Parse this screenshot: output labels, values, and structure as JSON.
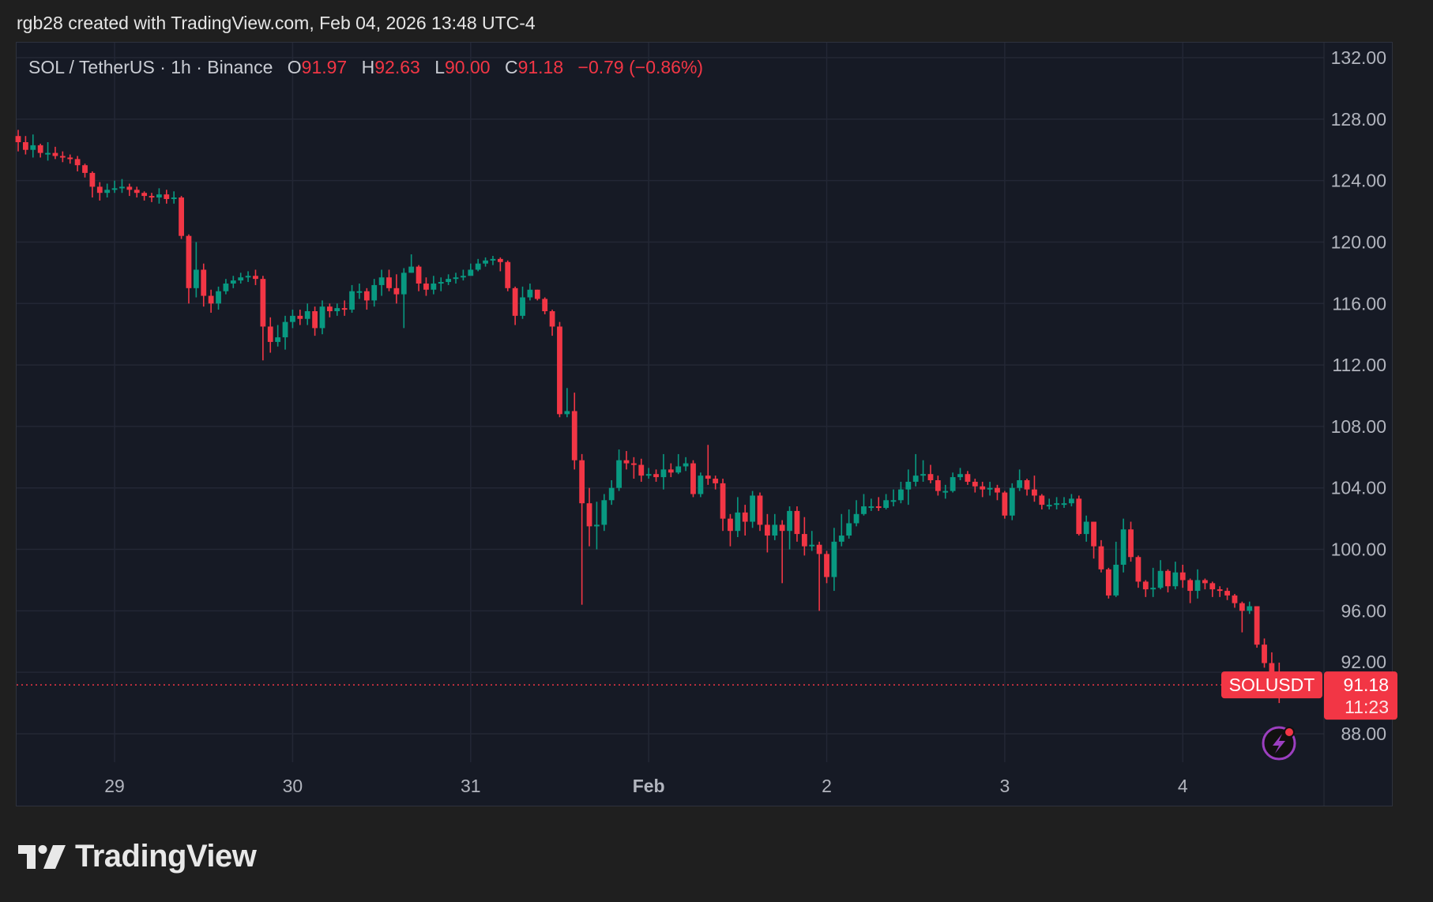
{
  "credit": "rgb28 created with TradingView.com, Feb 04, 2026 13:48 UTC-4",
  "legend": {
    "symbol": "SOL / TetherUS · 1h · Binance",
    "o_label": "O",
    "o": "91.97",
    "h_label": "H",
    "h": "92.63",
    "l_label": "L",
    "l": "90.00",
    "c_label": "C",
    "c": "91.18",
    "change": "−0.79 (−0.86%)"
  },
  "price_label": {
    "ticker": "SOLUSDT",
    "price": "91.18",
    "countdown": "11:23"
  },
  "logo_text": "TradingView",
  "colors": {
    "up": "#089981",
    "down": "#f23645",
    "background": "#161a25",
    "grid": "#232735",
    "alert_icon": "#9c3fc0"
  },
  "icons": {
    "alert": "lightning-alert-icon"
  },
  "chart_data": {
    "type": "candlestick",
    "title": "SOL / TetherUS · 1h · Binance",
    "interval": "1h",
    "ylim": [
      86,
      133
    ],
    "y_ticks": [
      "132.00",
      "128.00",
      "124.00",
      "120.00",
      "116.00",
      "112.00",
      "108.00",
      "104.00",
      "100.00",
      "96.00",
      "92.00",
      "88.00"
    ],
    "y_tick_values": [
      132,
      128,
      124,
      120,
      116,
      112,
      108,
      104,
      100,
      96,
      92,
      88
    ],
    "x_ticks": [
      {
        "label": "29",
        "index": 13
      },
      {
        "label": "30",
        "index": 37
      },
      {
        "label": "31",
        "index": 61
      },
      {
        "label": "Feb",
        "index": 85,
        "bold": true
      },
      {
        "label": "2",
        "index": 109
      },
      {
        "label": "3",
        "index": 133
      },
      {
        "label": "4",
        "index": 157
      }
    ],
    "grid": true,
    "last_price": 91.18,
    "candles": [
      [
        126.9,
        127.3,
        125.9,
        126.5
      ],
      [
        126.5,
        126.9,
        125.7,
        126.0
      ],
      [
        126.0,
        127.0,
        125.5,
        126.3
      ],
      [
        126.3,
        126.4,
        125.5,
        125.8
      ],
      [
        125.8,
        126.5,
        125.3,
        125.8
      ],
      [
        125.8,
        126.2,
        125.4,
        125.6
      ],
      [
        125.6,
        125.9,
        125.2,
        125.5
      ],
      [
        125.5,
        125.7,
        125.1,
        125.4
      ],
      [
        125.4,
        125.6,
        124.6,
        125.0
      ],
      [
        125.0,
        125.1,
        124.2,
        124.5
      ],
      [
        124.5,
        124.6,
        122.9,
        123.6
      ],
      [
        123.6,
        123.9,
        122.7,
        123.2
      ],
      [
        123.2,
        123.8,
        122.9,
        123.4
      ],
      [
        123.4,
        124.0,
        123.2,
        123.5
      ],
      [
        123.5,
        124.1,
        123.2,
        123.6
      ],
      [
        123.6,
        123.8,
        123.0,
        123.4
      ],
      [
        123.4,
        123.6,
        122.9,
        123.2
      ],
      [
        123.2,
        123.3,
        122.7,
        123.0
      ],
      [
        123.0,
        123.2,
        122.6,
        122.9
      ],
      [
        122.9,
        123.5,
        122.5,
        123.1
      ],
      [
        123.1,
        123.4,
        122.5,
        122.8
      ],
      [
        122.8,
        123.3,
        122.5,
        122.9
      ],
      [
        122.9,
        123.0,
        120.2,
        120.4
      ],
      [
        120.4,
        120.5,
        116.0,
        117.0
      ],
      [
        117.0,
        120.0,
        116.4,
        118.2
      ],
      [
        118.2,
        118.6,
        115.8,
        116.5
      ],
      [
        116.5,
        116.9,
        115.4,
        116.0
      ],
      [
        116.0,
        117.1,
        115.6,
        116.8
      ],
      [
        116.8,
        117.6,
        116.6,
        117.3
      ],
      [
        117.3,
        117.8,
        117.0,
        117.5
      ],
      [
        117.5,
        118.0,
        117.3,
        117.7
      ],
      [
        117.7,
        118.1,
        117.4,
        117.8
      ],
      [
        117.8,
        118.2,
        117.2,
        117.6
      ],
      [
        117.6,
        117.8,
        112.3,
        114.5
      ],
      [
        114.5,
        115.1,
        112.8,
        113.5
      ],
      [
        113.5,
        114.6,
        113.2,
        113.8
      ],
      [
        113.8,
        115.2,
        113.0,
        114.8
      ],
      [
        114.8,
        115.6,
        114.4,
        115.2
      ],
      [
        115.2,
        115.6,
        114.6,
        115.0
      ],
      [
        115.0,
        116.0,
        114.6,
        115.5
      ],
      [
        115.5,
        115.8,
        113.9,
        114.4
      ],
      [
        114.4,
        116.2,
        114.0,
        115.8
      ],
      [
        115.8,
        116.0,
        115.1,
        115.5
      ],
      [
        115.5,
        116.0,
        115.2,
        115.7
      ],
      [
        115.7,
        116.2,
        115.2,
        115.6
      ],
      [
        115.6,
        117.2,
        115.4,
        116.8
      ],
      [
        116.8,
        117.3,
        116.3,
        116.8
      ],
      [
        116.8,
        117.0,
        115.6,
        116.2
      ],
      [
        116.2,
        117.6,
        115.8,
        117.2
      ],
      [
        117.2,
        118.2,
        116.5,
        117.7
      ],
      [
        117.7,
        118.2,
        116.8,
        117.0
      ],
      [
        117.0,
        117.9,
        116.0,
        116.6
      ],
      [
        116.6,
        118.3,
        114.4,
        118.0
      ],
      [
        118.0,
        119.2,
        118.0,
        118.4
      ],
      [
        118.4,
        118.5,
        116.8,
        117.3
      ],
      [
        117.3,
        117.7,
        116.5,
        116.9
      ],
      [
        116.9,
        117.8,
        116.6,
        117.3
      ],
      [
        117.3,
        117.7,
        116.8,
        117.4
      ],
      [
        117.4,
        117.9,
        117.2,
        117.6
      ],
      [
        117.6,
        118.0,
        117.3,
        117.7
      ],
      [
        117.7,
        118.2,
        117.5,
        117.8
      ],
      [
        117.8,
        118.6,
        117.9,
        118.2
      ],
      [
        118.2,
        118.9,
        118.1,
        118.6
      ],
      [
        118.6,
        119.0,
        118.4,
        118.8
      ],
      [
        118.8,
        119.1,
        118.5,
        118.9
      ],
      [
        118.9,
        119.0,
        118.1,
        118.7
      ],
      [
        118.7,
        118.8,
        116.8,
        117.0
      ],
      [
        117.0,
        117.1,
        114.6,
        115.2
      ],
      [
        115.2,
        117.1,
        115.0,
        116.4
      ],
      [
        116.4,
        117.3,
        116.2,
        116.9
      ],
      [
        116.9,
        116.9,
        116.2,
        116.3
      ],
      [
        116.3,
        116.4,
        115.3,
        115.5
      ],
      [
        115.5,
        115.6,
        113.9,
        114.5
      ],
      [
        114.5,
        114.8,
        108.6,
        108.8
      ],
      [
        108.8,
        110.5,
        108.6,
        109.0
      ],
      [
        109.0,
        110.2,
        105.2,
        105.8
      ],
      [
        105.8,
        106.2,
        96.4,
        103.0
      ],
      [
        103.0,
        104.0,
        100.2,
        101.5
      ],
      [
        101.5,
        103.1,
        100.0,
        101.6
      ],
      [
        101.6,
        103.6,
        101.2,
        103.2
      ],
      [
        103.2,
        104.5,
        102.9,
        104.0
      ],
      [
        104.0,
        106.5,
        103.8,
        105.8
      ],
      [
        105.8,
        106.4,
        105.2,
        105.6
      ],
      [
        105.6,
        106.0,
        104.6,
        105.5
      ],
      [
        105.5,
        105.9,
        104.4,
        104.8
      ],
      [
        104.8,
        105.3,
        104.6,
        104.9
      ],
      [
        104.9,
        105.2,
        104.4,
        104.7
      ],
      [
        104.7,
        106.2,
        103.9,
        105.2
      ],
      [
        105.2,
        105.6,
        104.7,
        105.0
      ],
      [
        105.0,
        106.2,
        104.9,
        105.4
      ],
      [
        105.4,
        106.0,
        105.1,
        105.6
      ],
      [
        105.6,
        105.8,
        103.4,
        103.6
      ],
      [
        103.6,
        105.0,
        103.4,
        104.8
      ],
      [
        104.8,
        106.8,
        104.2,
        104.6
      ],
      [
        104.6,
        104.8,
        103.9,
        104.3
      ],
      [
        104.3,
        104.6,
        101.2,
        102.0
      ],
      [
        102.0,
        102.3,
        100.2,
        101.2
      ],
      [
        101.2,
        103.4,
        100.8,
        102.4
      ],
      [
        102.4,
        102.9,
        100.9,
        101.8
      ],
      [
        101.8,
        103.8,
        101.4,
        103.5
      ],
      [
        103.5,
        103.7,
        101.2,
        101.6
      ],
      [
        101.6,
        102.3,
        99.8,
        100.9
      ],
      [
        100.9,
        102.3,
        100.6,
        101.6
      ],
      [
        101.6,
        101.9,
        97.8,
        101.2
      ],
      [
        101.2,
        102.8,
        100.0,
        102.5
      ],
      [
        102.5,
        102.8,
        100.5,
        101.0
      ],
      [
        101.0,
        102.1,
        99.6,
        100.2
      ],
      [
        100.2,
        101.2,
        99.9,
        100.3
      ],
      [
        100.3,
        100.5,
        96.0,
        99.7
      ],
      [
        99.7,
        99.9,
        97.8,
        98.2
      ],
      [
        98.2,
        101.4,
        97.3,
        100.5
      ],
      [
        100.5,
        102.3,
        100.2,
        100.9
      ],
      [
        100.9,
        102.6,
        100.7,
        101.7
      ],
      [
        101.7,
        103.2,
        101.5,
        102.3
      ],
      [
        102.3,
        103.6,
        102.2,
        102.8
      ],
      [
        102.8,
        103.3,
        102.5,
        102.8
      ],
      [
        102.8,
        103.4,
        102.5,
        102.7
      ],
      [
        102.7,
        103.6,
        102.6,
        103.2
      ],
      [
        103.2,
        103.9,
        102.8,
        103.2
      ],
      [
        103.2,
        104.4,
        103.0,
        103.9
      ],
      [
        103.9,
        105.2,
        102.9,
        104.4
      ],
      [
        104.4,
        106.2,
        104.1,
        104.8
      ],
      [
        104.8,
        105.8,
        104.4,
        104.9
      ],
      [
        104.9,
        105.5,
        104.3,
        104.5
      ],
      [
        104.5,
        104.8,
        103.5,
        103.8
      ],
      [
        103.8,
        104.2,
        103.3,
        103.8
      ],
      [
        103.8,
        105.0,
        103.7,
        104.7
      ],
      [
        104.7,
        105.3,
        104.5,
        104.9
      ],
      [
        104.9,
        105.1,
        104.2,
        104.4
      ],
      [
        104.4,
        104.6,
        103.7,
        104.1
      ],
      [
        104.1,
        104.4,
        103.4,
        103.9
      ],
      [
        103.9,
        104.4,
        103.5,
        104.0
      ],
      [
        104.0,
        104.2,
        103.2,
        103.7
      ],
      [
        103.7,
        103.8,
        102.0,
        102.2
      ],
      [
        102.2,
        104.3,
        101.9,
        104.0
      ],
      [
        104.0,
        105.2,
        103.8,
        104.5
      ],
      [
        104.5,
        104.6,
        103.5,
        103.9
      ],
      [
        103.9,
        104.8,
        103.1,
        103.5
      ],
      [
        103.5,
        103.6,
        102.6,
        102.9
      ],
      [
        102.9,
        103.3,
        102.6,
        102.9
      ],
      [
        102.9,
        103.4,
        102.6,
        103.0
      ],
      [
        103.0,
        103.4,
        102.7,
        103.0
      ],
      [
        103.0,
        103.6,
        102.8,
        103.3
      ],
      [
        103.3,
        103.5,
        100.9,
        101.0
      ],
      [
        101.0,
        102.2,
        100.5,
        101.8
      ],
      [
        101.8,
        101.8,
        99.4,
        100.2
      ],
      [
        100.2,
        100.6,
        98.5,
        98.7
      ],
      [
        98.7,
        98.8,
        96.8,
        97.0
      ],
      [
        97.0,
        100.5,
        96.9,
        99.0
      ],
      [
        99.0,
        102.0,
        98.5,
        101.3
      ],
      [
        101.3,
        101.8,
        99.2,
        99.5
      ],
      [
        99.5,
        99.6,
        97.5,
        97.9
      ],
      [
        97.9,
        98.0,
        96.9,
        97.4
      ],
      [
        97.4,
        98.8,
        96.9,
        97.5
      ],
      [
        97.5,
        99.3,
        97.4,
        98.6
      ],
      [
        98.6,
        98.7,
        97.2,
        97.6
      ],
      [
        97.6,
        99.2,
        97.4,
        98.5
      ],
      [
        98.5,
        99.0,
        97.5,
        98.0
      ],
      [
        98.0,
        98.1,
        96.5,
        97.3
      ],
      [
        97.3,
        98.7,
        96.8,
        98.0
      ],
      [
        98.0,
        98.1,
        97.4,
        97.8
      ],
      [
        97.8,
        97.9,
        96.9,
        97.4
      ],
      [
        97.4,
        97.6,
        96.9,
        97.3
      ],
      [
        97.3,
        97.5,
        96.7,
        97.0
      ],
      [
        97.0,
        97.1,
        96.2,
        96.5
      ],
      [
        96.5,
        96.6,
        94.6,
        96.0
      ],
      [
        96.0,
        96.6,
        95.8,
        96.3
      ],
      [
        96.3,
        96.3,
        93.6,
        93.8
      ],
      [
        93.8,
        94.2,
        92.3,
        92.6
      ],
      [
        92.6,
        93.3,
        91.5,
        91.97
      ],
      [
        91.97,
        92.63,
        90.0,
        91.18
      ]
    ]
  }
}
